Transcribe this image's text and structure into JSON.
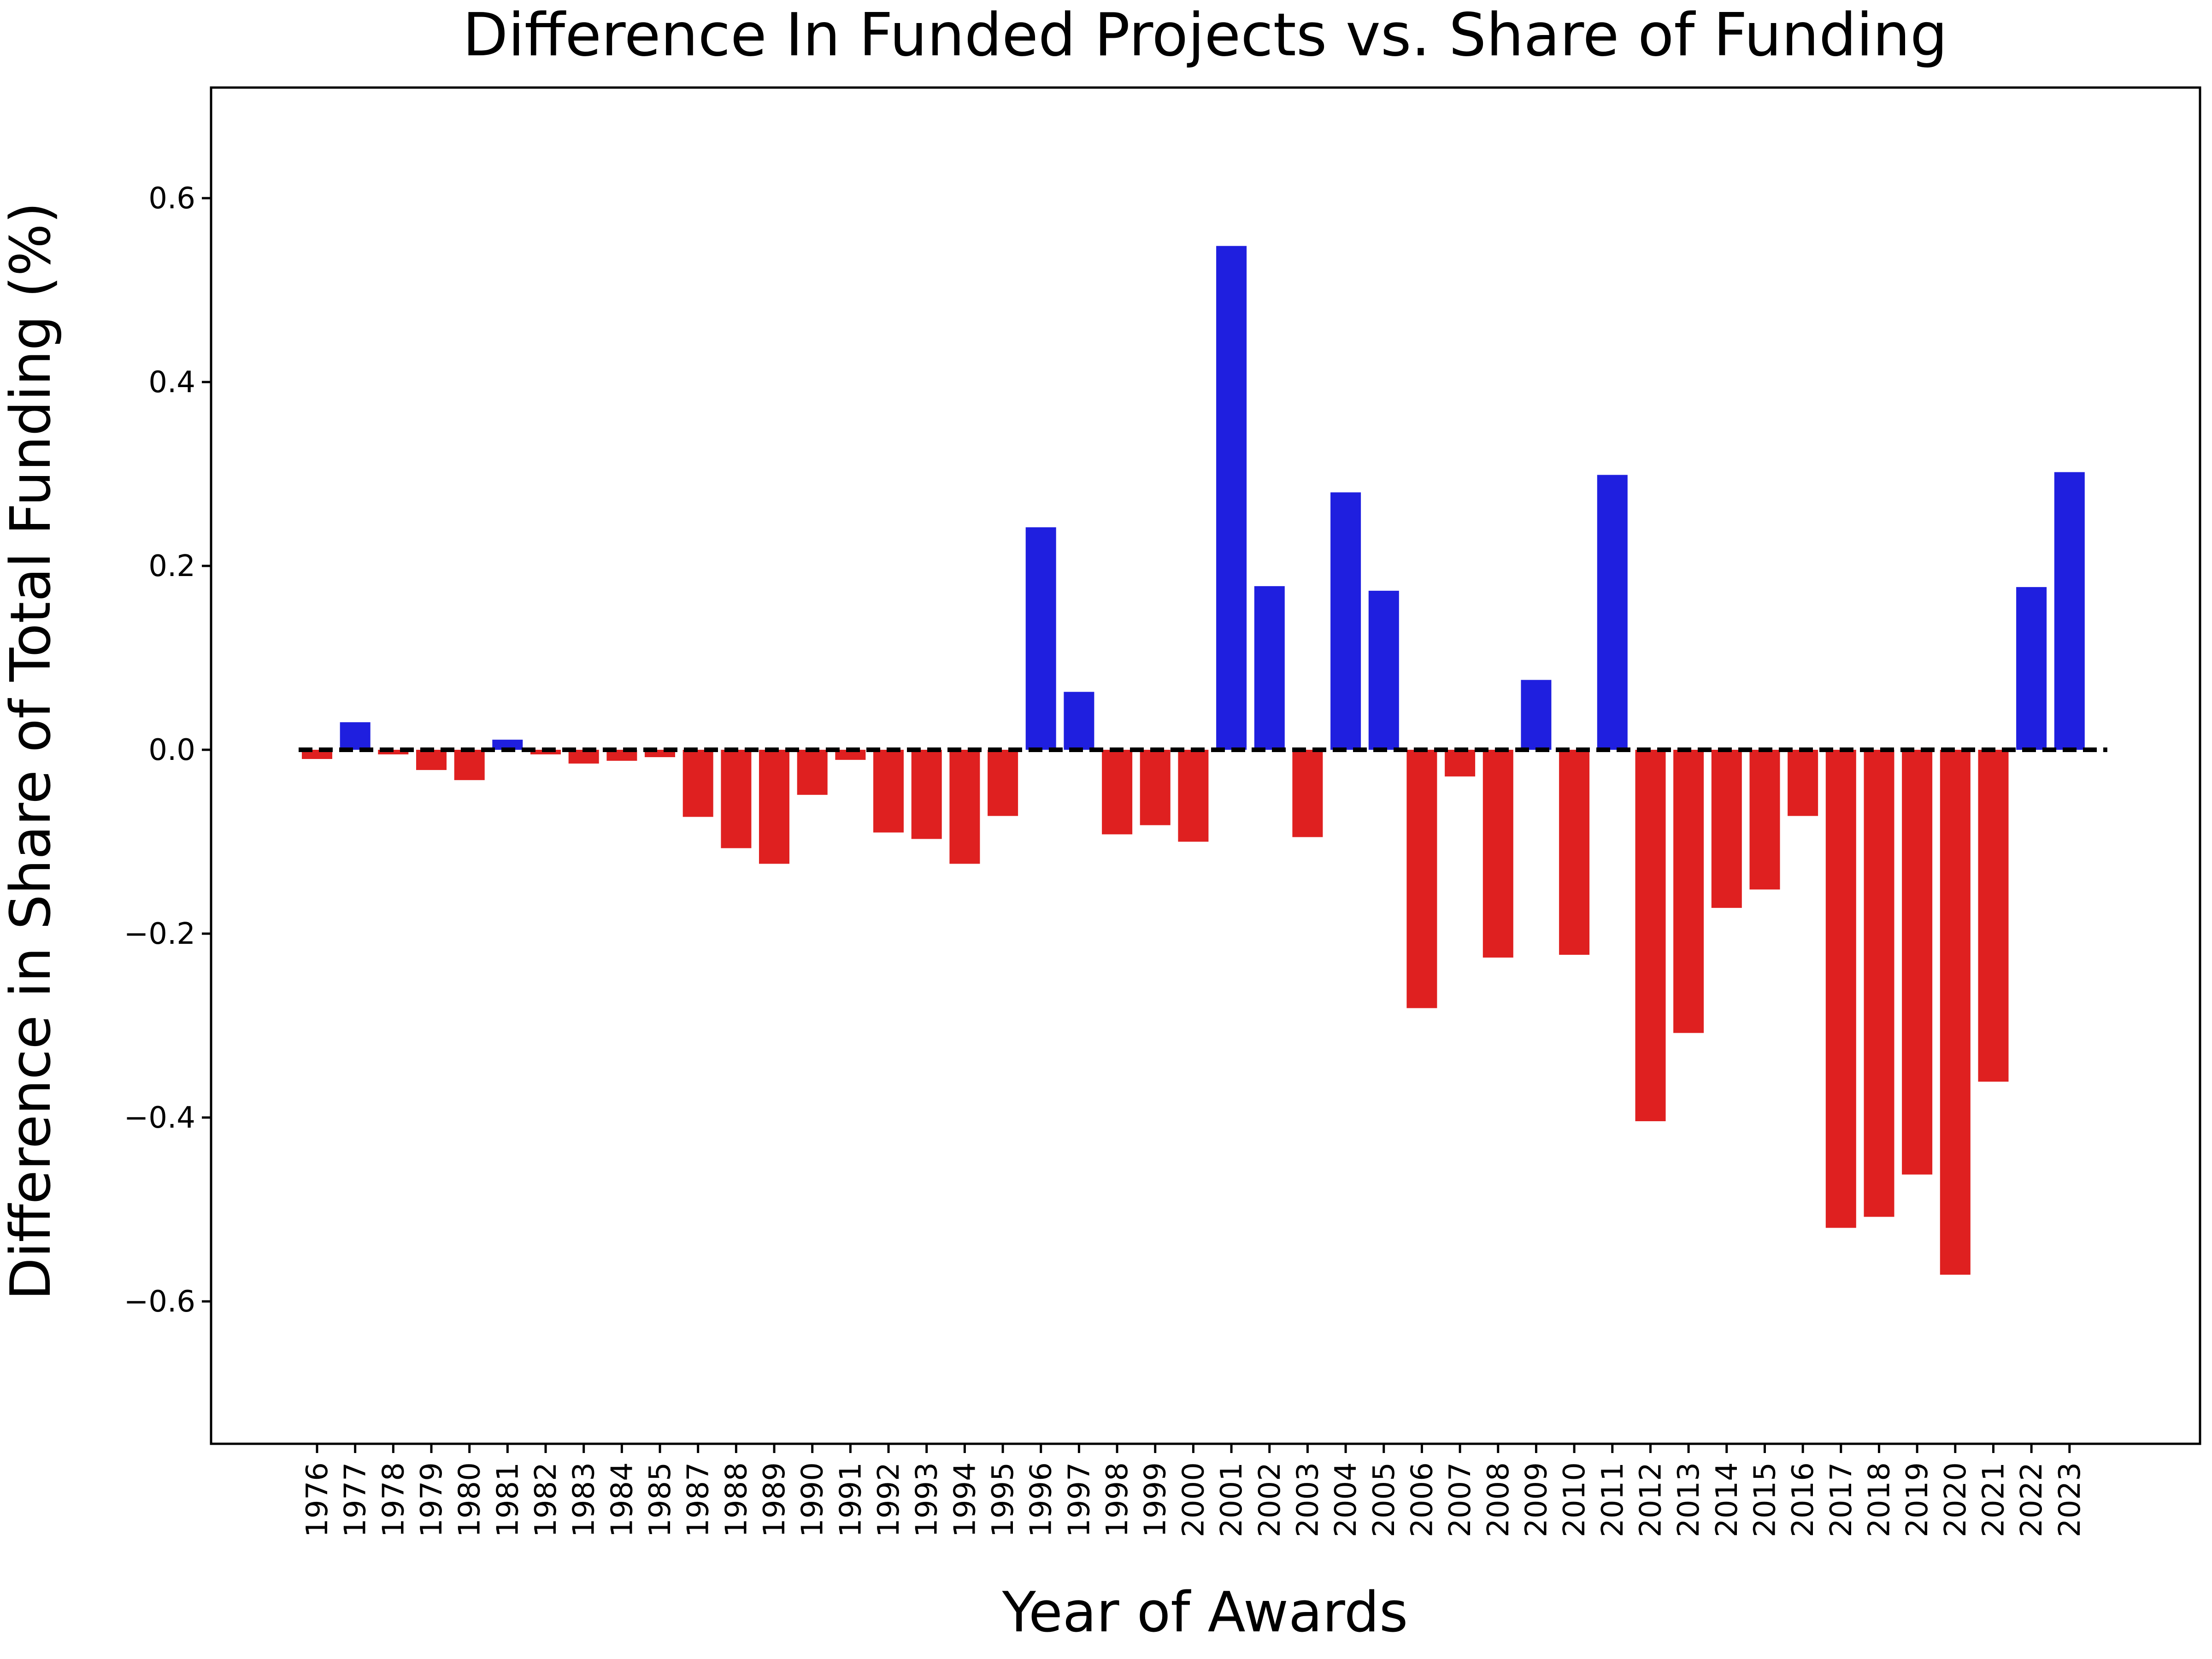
{
  "chart_data": {
    "type": "bar",
    "title": "Difference In Funded Projects vs. Share of Funding",
    "xlabel": "Year of Awards",
    "ylabel": "Difference in Share of Total Funding (%)",
    "ylim": [
      -0.627,
      0.6
    ],
    "yticks": [
      0.6,
      0.4,
      0.2,
      0.0,
      -0.2,
      -0.4,
      -0.6
    ],
    "ytick_labels": [
      "0.6",
      "0.4",
      "0.2",
      "0.0",
      "−0.2",
      "−0.4",
      "−0.6"
    ],
    "grid": false,
    "legend": "none",
    "reference_line": {
      "y": 0,
      "style": "dashed",
      "color": "#000000"
    },
    "colors": {
      "positive": "#1f1fdf",
      "negative": "#df2020"
    },
    "categories": [
      "1976",
      "1977",
      "1978",
      "1979",
      "1980",
      "1981",
      "1982",
      "1983",
      "1984",
      "1985",
      "1987",
      "1988",
      "1989",
      "1990",
      "1991",
      "1992",
      "1993",
      "1994",
      "1995",
      "1996",
      "1997",
      "1998",
      "1999",
      "2000",
      "2001",
      "2002",
      "2003",
      "2004",
      "2005",
      "2006",
      "2007",
      "2008",
      "2009",
      "2010",
      "2011",
      "2012",
      "2013",
      "2014",
      "2015",
      "2016",
      "2017",
      "2018",
      "2019",
      "2020",
      "2021",
      "2022",
      "2023"
    ],
    "values": [
      -0.01,
      0.03,
      -0.005,
      -0.022,
      -0.033,
      0.011,
      -0.005,
      -0.015,
      -0.012,
      -0.008,
      -0.073,
      -0.107,
      -0.124,
      -0.049,
      -0.011,
      -0.09,
      -0.097,
      -0.124,
      -0.072,
      0.242,
      0.063,
      -0.092,
      -0.082,
      -0.1,
      0.548,
      0.178,
      -0.095,
      0.28,
      0.173,
      -0.281,
      -0.029,
      -0.226,
      0.076,
      -0.223,
      0.299,
      -0.404,
      -0.308,
      -0.172,
      -0.152,
      -0.072,
      -0.52,
      -0.508,
      -0.462,
      -0.571,
      -0.361,
      0.177,
      0.302
    ]
  }
}
